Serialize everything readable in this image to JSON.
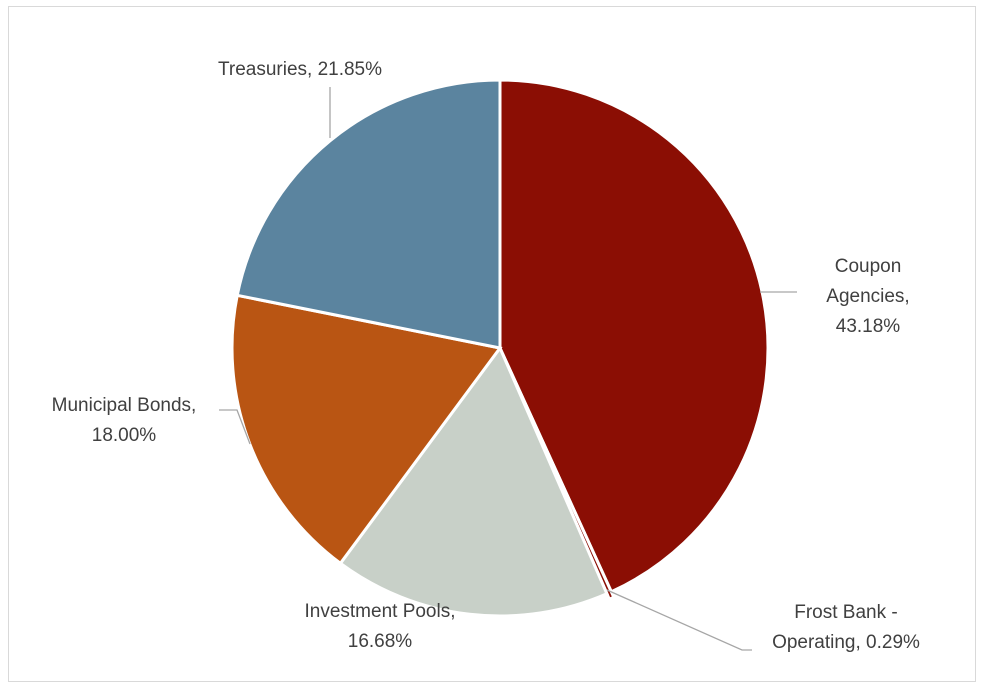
{
  "chart_data": {
    "type": "pie",
    "slices": [
      {
        "name": "Coupon Agencies",
        "value": 43.18,
        "label": [
          "Coupon",
          "Agencies,",
          "43.18%"
        ],
        "color": "#8b0e04"
      },
      {
        "name": "Frost Bank - Operating",
        "value": 0.29,
        "label": [
          "Frost Bank -",
          "Operating, 0.29%"
        ],
        "color": "#8b0e04"
      },
      {
        "name": "Investment Pools",
        "value": 16.68,
        "label": [
          "Investment Pools,",
          "16.68%"
        ],
        "color": "#c8d0c8"
      },
      {
        "name": "Municipal Bonds",
        "value": 18.0,
        "label": [
          "Municipal Bonds,",
          "18.00%"
        ],
        "color": "#b95513"
      },
      {
        "name": "Treasuries",
        "value": 21.85,
        "label": [
          "Treasuries, 21.85%"
        ],
        "color": "#5b849f"
      }
    ],
    "start_angle": "12 o'clock",
    "direction": "clockwise",
    "legend": "none"
  }
}
